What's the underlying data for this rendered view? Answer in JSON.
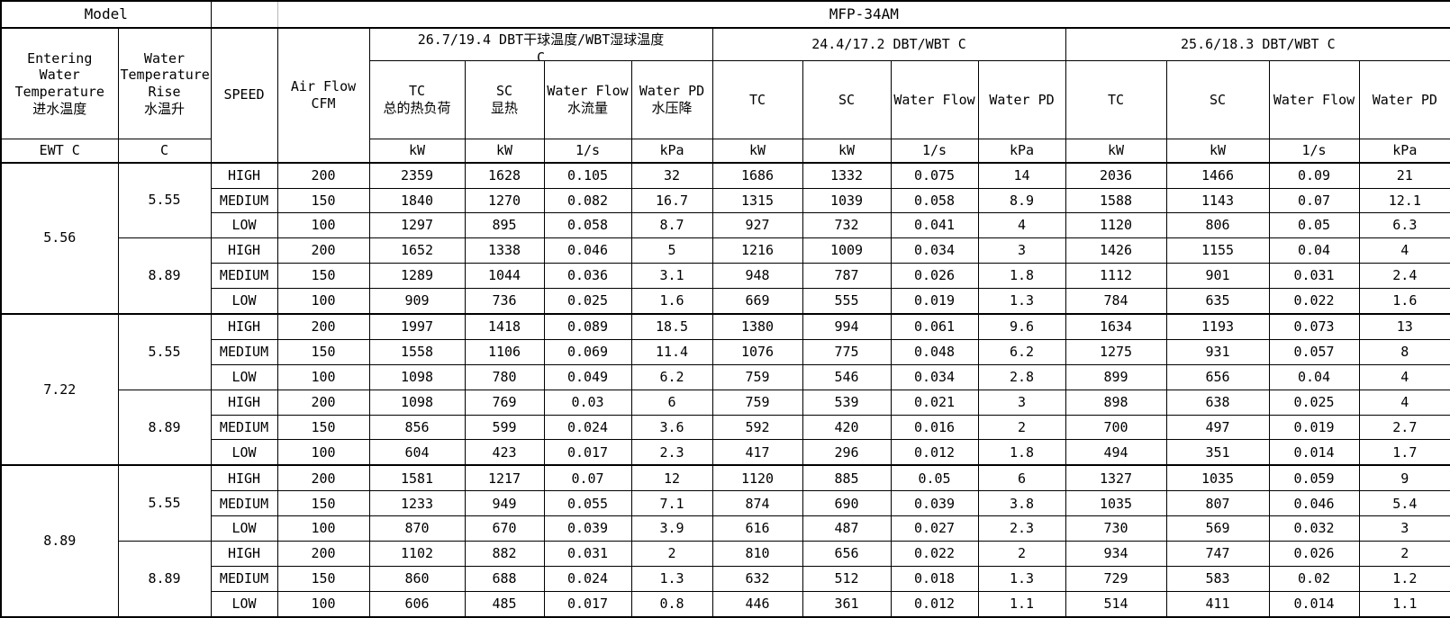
{
  "table": {
    "model_label": "Model",
    "model_value": "MFP-34AM",
    "headers": {
      "entering": "Entering\nWater\nTemperature\n进水温度",
      "rise": "Water\nTemperature\nRise\n水温升",
      "speed": "SPEED",
      "airflow": "Air Flow\nCFM"
    },
    "units": {
      "ewt": "EWT C",
      "rise": "C"
    },
    "groups": [
      {
        "title": "26.7/19.4 DBT干球温度/WBT湿球温度\nC",
        "columns": [
          "TC\n总的热负荷",
          "SC\n显热",
          "Water Flow\n水流量",
          "Water PD\n水压降"
        ],
        "units": [
          "kW",
          "kW",
          "1/s",
          "kPa"
        ]
      },
      {
        "title": "24.4/17.2 DBT/WBT C",
        "columns": [
          "TC",
          "SC",
          "Water Flow",
          "Water PD"
        ],
        "units": [
          "kW",
          "kW",
          "1/s",
          "kPa"
        ]
      },
      {
        "title": "25.6/18.3 DBT/WBT C",
        "columns": [
          "TC",
          "SC",
          "Water Flow",
          "Water PD"
        ],
        "units": [
          "kW",
          "kW",
          "1/s",
          "kPa"
        ]
      }
    ],
    "blocks": [
      {
        "ewt": "5.56",
        "rises": [
          {
            "rise": "5.55",
            "rows": [
              {
                "speed": "HIGH",
                "cfm": "200",
                "values": [
                  "2359",
                  "1628",
                  "0.105",
                  "32",
                  "1686",
                  "1332",
                  "0.075",
                  "14",
                  "2036",
                  "1466",
                  "0.09",
                  "21"
                ]
              },
              {
                "speed": "MEDIUM",
                "cfm": "150",
                "values": [
                  "1840",
                  "1270",
                  "0.082",
                  "16.7",
                  "1315",
                  "1039",
                  "0.058",
                  "8.9",
                  "1588",
                  "1143",
                  "0.07",
                  "12.1"
                ]
              },
              {
                "speed": "LOW",
                "cfm": "100",
                "values": [
                  "1297",
                  "895",
                  "0.058",
                  "8.7",
                  "927",
                  "732",
                  "0.041",
                  "4",
                  "1120",
                  "806",
                  "0.05",
                  "6.3"
                ]
              }
            ]
          },
          {
            "rise": "8.89",
            "rows": [
              {
                "speed": "HIGH",
                "cfm": "200",
                "values": [
                  "1652",
                  "1338",
                  "0.046",
                  "5",
                  "1216",
                  "1009",
                  "0.034",
                  "3",
                  "1426",
                  "1155",
                  "0.04",
                  "4"
                ]
              },
              {
                "speed": "MEDIUM",
                "cfm": "150",
                "values": [
                  "1289",
                  "1044",
                  "0.036",
                  "3.1",
                  "948",
                  "787",
                  "0.026",
                  "1.8",
                  "1112",
                  "901",
                  "0.031",
                  "2.4"
                ]
              },
              {
                "speed": "LOW",
                "cfm": "100",
                "values": [
                  "909",
                  "736",
                  "0.025",
                  "1.6",
                  "669",
                  "555",
                  "0.019",
                  "1.3",
                  "784",
                  "635",
                  "0.022",
                  "1.6"
                ]
              }
            ]
          }
        ]
      },
      {
        "ewt": "7.22",
        "rises": [
          {
            "rise": "5.55",
            "rows": [
              {
                "speed": "HIGH",
                "cfm": "200",
                "values": [
                  "1997",
                  "1418",
                  "0.089",
                  "18.5",
                  "1380",
                  "994",
                  "0.061",
                  "9.6",
                  "1634",
                  "1193",
                  "0.073",
                  "13"
                ]
              },
              {
                "speed": "MEDIUM",
                "cfm": "150",
                "values": [
                  "1558",
                  "1106",
                  "0.069",
                  "11.4",
                  "1076",
                  "775",
                  "0.048",
                  "6.2",
                  "1275",
                  "931",
                  "0.057",
                  "8"
                ]
              },
              {
                "speed": "LOW",
                "cfm": "100",
                "values": [
                  "1098",
                  "780",
                  "0.049",
                  "6.2",
                  "759",
                  "546",
                  "0.034",
                  "2.8",
                  "899",
                  "656",
                  "0.04",
                  "4"
                ]
              }
            ]
          },
          {
            "rise": "8.89",
            "rows": [
              {
                "speed": "HIGH",
                "cfm": "200",
                "values": [
                  "1098",
                  "769",
                  "0.03",
                  "6",
                  "759",
                  "539",
                  "0.021",
                  "3",
                  "898",
                  "638",
                  "0.025",
                  "4"
                ]
              },
              {
                "speed": "MEDIUM",
                "cfm": "150",
                "values": [
                  "856",
                  "599",
                  "0.024",
                  "3.6",
                  "592",
                  "420",
                  "0.016",
                  "2",
                  "700",
                  "497",
                  "0.019",
                  "2.7"
                ]
              },
              {
                "speed": "LOW",
                "cfm": "100",
                "values": [
                  "604",
                  "423",
                  "0.017",
                  "2.3",
                  "417",
                  "296",
                  "0.012",
                  "1.8",
                  "494",
                  "351",
                  "0.014",
                  "1.7"
                ]
              }
            ]
          }
        ]
      },
      {
        "ewt": "8.89",
        "rises": [
          {
            "rise": "5.55",
            "rows": [
              {
                "speed": "HIGH",
                "cfm": "200",
                "values": [
                  "1581",
                  "1217",
                  "0.07",
                  "12",
                  "1120",
                  "885",
                  "0.05",
                  "6",
                  "1327",
                  "1035",
                  "0.059",
                  "9"
                ]
              },
              {
                "speed": "MEDIUM",
                "cfm": "150",
                "values": [
                  "1233",
                  "949",
                  "0.055",
                  "7.1",
                  "874",
                  "690",
                  "0.039",
                  "3.8",
                  "1035",
                  "807",
                  "0.046",
                  "5.4"
                ]
              },
              {
                "speed": "LOW",
                "cfm": "100",
                "values": [
                  "870",
                  "670",
                  "0.039",
                  "3.9",
                  "616",
                  "487",
                  "0.027",
                  "2.3",
                  "730",
                  "569",
                  "0.032",
                  "3"
                ]
              }
            ]
          },
          {
            "rise": "8.89",
            "rows": [
              {
                "speed": "HIGH",
                "cfm": "200",
                "values": [
                  "1102",
                  "882",
                  "0.031",
                  "2",
                  "810",
                  "656",
                  "0.022",
                  "2",
                  "934",
                  "747",
                  "0.026",
                  "2"
                ]
              },
              {
                "speed": "MEDIUM",
                "cfm": "150",
                "values": [
                  "860",
                  "688",
                  "0.024",
                  "1.3",
                  "632",
                  "512",
                  "0.018",
                  "1.3",
                  "729",
                  "583",
                  "0.02",
                  "1.2"
                ]
              },
              {
                "speed": "LOW",
                "cfm": "100",
                "values": [
                  "606",
                  "485",
                  "0.017",
                  "0.8",
                  "446",
                  "361",
                  "0.012",
                  "1.1",
                  "514",
                  "411",
                  "0.014",
                  "1.1"
                ]
              }
            ]
          }
        ]
      }
    ]
  }
}
